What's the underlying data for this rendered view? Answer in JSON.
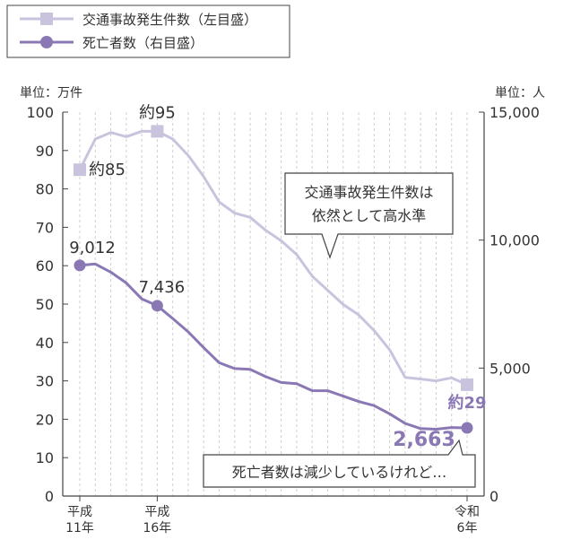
{
  "chart_data": {
    "type": "line",
    "legend": {
      "placement": "top-left",
      "entries": [
        {
          "name": "交通事故発生件数（左目盛）",
          "marker": "square",
          "color": "#c9c3de"
        },
        {
          "name": "死亡者数（右目盛）",
          "marker": "circle",
          "color": "#8a78b4"
        }
      ]
    },
    "y_left": {
      "unit_label": "単位：万件",
      "min": 0,
      "max": 100,
      "ticks": [
        0,
        10,
        20,
        30,
        40,
        50,
        60,
        70,
        80,
        90,
        100
      ]
    },
    "y_right": {
      "unit_label": "単位：人",
      "min": 0,
      "max": 15000,
      "ticks": [
        0,
        5000,
        10000,
        15000
      ],
      "tick_labels": [
        "0",
        "5,000",
        "10,000",
        "15,000"
      ]
    },
    "x_labels": [
      {
        "index": 0,
        "line1": "平成",
        "line2": "11年"
      },
      {
        "index": 5,
        "line1": "平成",
        "line2": "16年"
      },
      {
        "index": 25,
        "line1": "令和",
        "line2": "6年"
      }
    ],
    "x_count": 26,
    "grid": "vertical-dashed",
    "series": [
      {
        "name": "交通事故発生件数（左目盛）",
        "axis": "left",
        "color": "#c9c3de",
        "values": [
          85,
          93,
          94.7,
          93.6,
          95,
          95,
          93,
          88.7,
          83.2,
          76.6,
          73.7,
          72.6,
          69.2,
          66.5,
          62.9,
          57.3,
          53.6,
          49.9,
          47.2,
          43.1,
          38.1,
          30.9,
          30.5,
          30,
          30.8,
          29
        ]
      },
      {
        "name": "死亡者数（右目盛）",
        "axis": "right",
        "color": "#8a78b4",
        "values": [
          9012,
          9066,
          8747,
          8326,
          7702,
          7436,
          6937,
          6415,
          5796,
          5209,
          4979,
          4948,
          4663,
          4438,
          4388,
          4117,
          4113,
          3904,
          3694,
          3532,
          3215,
          2839,
          2636,
          2610,
          2678,
          2663
        ]
      }
    ],
    "point_labels": [
      {
        "series": 0,
        "index": 0,
        "text": "約85"
      },
      {
        "series": 0,
        "index": 5,
        "text": "約95"
      },
      {
        "series": 0,
        "index": 25,
        "text": "約29"
      },
      {
        "series": 1,
        "index": 0,
        "text": "9,012"
      },
      {
        "series": 1,
        "index": 5,
        "text": "7,436"
      },
      {
        "series": 1,
        "index": 25,
        "text": "2,663"
      }
    ],
    "callouts": [
      {
        "lines": [
          "交通事故発生件数は",
          "依然として高水準"
        ]
      },
      {
        "lines": [
          "死亡者数は減少しているけれど…"
        ]
      }
    ]
  }
}
